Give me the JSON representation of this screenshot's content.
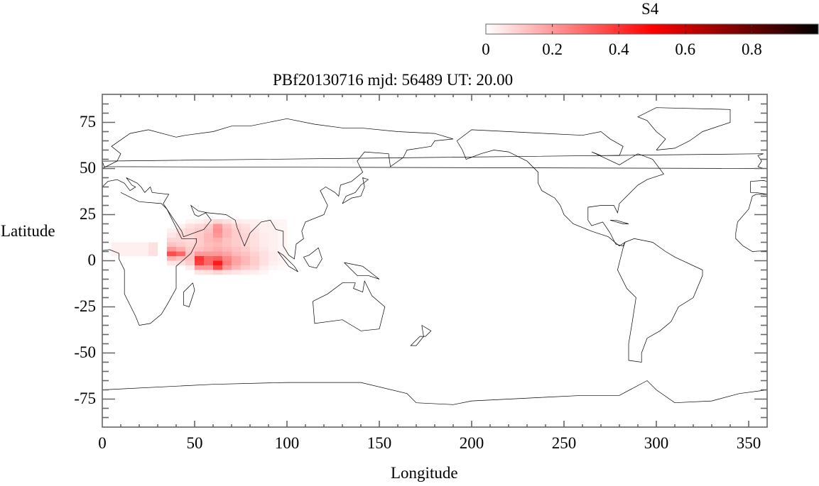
{
  "chart_data": {
    "type": "heatmap",
    "title": "PBf20130716  mjd: 56489  UT:  20.00",
    "xlabel": "Longitude",
    "ylabel": "Latitude",
    "xlim": [
      0,
      360
    ],
    "ylim": [
      -90,
      90
    ],
    "xticks": [
      "0",
      "50",
      "100",
      "150",
      "200",
      "250",
      "300",
      "350"
    ],
    "xtick_values": [
      0,
      50,
      100,
      150,
      200,
      250,
      300,
      350
    ],
    "yticks": [
      "75",
      "50",
      "25",
      "0",
      "-25",
      "-50",
      "-75"
    ],
    "ytick_values": [
      75,
      50,
      25,
      0,
      -25,
      -50,
      -75
    ],
    "grid": false,
    "background_map": "world coastlines",
    "colorbar": {
      "label": "S4",
      "range": [
        0,
        1
      ],
      "ticks": [
        "0",
        "0.2",
        "0.4",
        "0.6",
        "0.8"
      ],
      "tick_values": [
        0,
        0.2,
        0.4,
        0.6,
        0.8
      ],
      "colors": [
        "#ffffff",
        "#ff0000",
        "#000000"
      ],
      "placement": "top-right"
    },
    "cell_size_deg": {
      "lon": 5,
      "lat": 2.5
    },
    "lon_edges_start": 35,
    "lat_rows_top": [
      22.5,
      20,
      17.5,
      15,
      12.5,
      10,
      7.5,
      5,
      2.5,
      0,
      -2.5,
      -5
    ],
    "values": [
      [
        0,
        0,
        0.02,
        0.03,
        0.05,
        0.08,
        0.06,
        0.04,
        0.03,
        0.03,
        0.02,
        0.02,
        0.02
      ],
      [
        0,
        0.03,
        0.06,
        0.08,
        0.1,
        0.2,
        0.12,
        0.08,
        0.06,
        0.04,
        0.03,
        0.03,
        0.02
      ],
      [
        0.03,
        0.06,
        0.08,
        0.1,
        0.12,
        0.22,
        0.14,
        0.1,
        0.07,
        0.05,
        0.03,
        0.03,
        0.02
      ],
      [
        0.05,
        0.08,
        0.08,
        0.1,
        0.14,
        0.2,
        0.14,
        0.1,
        0.08,
        0.06,
        0.04,
        0.03,
        0.02
      ],
      [
        0.08,
        0.08,
        0.07,
        0.1,
        0.14,
        0.16,
        0.12,
        0.1,
        0.08,
        0.06,
        0.04,
        0.03,
        0.02
      ],
      [
        0.12,
        0.1,
        0.08,
        0.1,
        0.13,
        0.14,
        0.12,
        0.1,
        0.08,
        0.06,
        0.04,
        0.03,
        0.02
      ],
      [
        0.2,
        0.16,
        0.1,
        0.12,
        0.14,
        0.16,
        0.14,
        0.12,
        0.1,
        0.07,
        0.05,
        0.03,
        0.02
      ],
      [
        0.35,
        0.3,
        0.12,
        0.2,
        0.2,
        0.2,
        0.18,
        0.14,
        0.12,
        0.09,
        0.06,
        0.04,
        0.02
      ],
      [
        0.15,
        0.12,
        0.12,
        0.4,
        0.3,
        0.32,
        0.24,
        0.18,
        0.14,
        0.1,
        0.06,
        0.04,
        0.02
      ],
      [
        0.05,
        0.06,
        0.1,
        0.38,
        0.3,
        0.45,
        0.26,
        0.18,
        0.14,
        0.1,
        0.06,
        0.03,
        0.02
      ],
      [
        0,
        0,
        0.04,
        0.2,
        0.2,
        0.35,
        0.2,
        0.14,
        0.1,
        0.08,
        0.04,
        0.02,
        0.01
      ],
      [
        0,
        0,
        0,
        0.05,
        0.06,
        0.08,
        0.06,
        0.05,
        0.04,
        0.03,
        0.02,
        0,
        0
      ]
    ],
    "extra_cells": [
      {
        "lon": [
          5,
          25
        ],
        "lat": [
          2.5,
          10
        ],
        "value": 0.03
      },
      {
        "lon": [
          25,
          30
        ],
        "lat": [
          2.5,
          10
        ],
        "value": 0.06
      }
    ]
  }
}
